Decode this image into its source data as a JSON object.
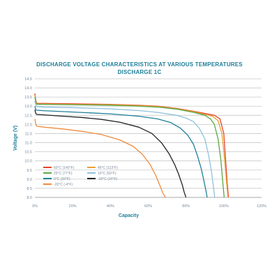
{
  "chart_data": {
    "type": "line",
    "title": "DISCHARGE VOLTAGE CHARACTERISTICS AT VARIOUS TEMPERATURES",
    "subtitle": "DISCHARGE 1C",
    "xlabel": "Capacity",
    "ylabel": "Voltage (V)",
    "xlim": [
      0,
      120
    ],
    "ylim": [
      8.0,
      14.5
    ],
    "x_ticks": [
      "0%",
      "20%",
      "40%",
      "60%",
      "80%",
      "100%",
      "120%"
    ],
    "y_ticks": [
      "8.0",
      "8.5",
      "9.0",
      "9.5",
      "10.0",
      "10.5",
      "11.0",
      "11.5",
      "12.0",
      "12.5",
      "13.0",
      "13.5",
      "14.0",
      "14.5"
    ],
    "grid": true,
    "legend_position": "lower-left",
    "series": [
      {
        "name": "60°C (140°F)",
        "color": "#e8442a",
        "x": [
          0,
          0.5,
          1,
          5,
          20,
          40,
          55,
          65,
          75,
          84,
          90,
          95,
          98,
          100,
          101,
          101.8,
          102.5
        ],
        "y": [
          13.7,
          13.3,
          13.15,
          13.15,
          13.13,
          13.1,
          13.05,
          13.0,
          12.88,
          12.72,
          12.6,
          12.5,
          12.3,
          11.5,
          10.0,
          8.8,
          8.0
        ]
      },
      {
        "name": "45°C (113°F)",
        "color": "#e8a233",
        "x": [
          0,
          0.5,
          1,
          5,
          20,
          40,
          55,
          65,
          75,
          84,
          90,
          94,
          97,
          99,
          100.5,
          101.5,
          102.2
        ],
        "y": [
          13.6,
          13.25,
          13.12,
          13.12,
          13.1,
          13.08,
          13.03,
          12.98,
          12.86,
          12.7,
          12.55,
          12.45,
          12.2,
          11.5,
          10.0,
          8.8,
          8.0
        ]
      },
      {
        "name": "25°C (77°F)",
        "color": "#5aa845",
        "x": [
          0,
          0.5,
          1,
          5,
          20,
          40,
          55,
          65,
          75,
          84,
          90,
          93,
          95,
          97,
          98.5,
          99.5,
          100.2
        ],
        "y": [
          13.5,
          13.2,
          13.1,
          13.1,
          13.08,
          13.05,
          13.0,
          12.95,
          12.84,
          12.66,
          12.5,
          12.3,
          12.0,
          11.2,
          10.0,
          8.8,
          8.0
        ]
      },
      {
        "name": "10°C (50°F)",
        "color": "#8ec1dd",
        "x": [
          0,
          0.5,
          1,
          5,
          20,
          40,
          55,
          65,
          75,
          80,
          84,
          87,
          90,
          92,
          93.5,
          94.5,
          95.2
        ],
        "y": [
          13.3,
          13.05,
          12.98,
          12.95,
          12.92,
          12.85,
          12.76,
          12.66,
          12.5,
          12.35,
          12.15,
          11.8,
          11.2,
          10.3,
          9.4,
          8.6,
          8.0
        ]
      },
      {
        "name": "0°C (32°F)",
        "color": "#1f7f9a",
        "x": [
          0,
          0.5,
          1,
          5,
          20,
          40,
          55,
          65,
          72,
          77,
          81,
          84,
          86,
          88,
          89.5,
          90.5,
          91.2
        ],
        "y": [
          13.0,
          12.8,
          12.78,
          12.75,
          12.68,
          12.58,
          12.45,
          12.3,
          12.1,
          11.8,
          11.4,
          10.9,
          10.3,
          9.6,
          8.9,
          8.4,
          8.0
        ]
      },
      {
        "name": "-10°C (14°F)",
        "color": "#222222",
        "x": [
          0,
          0.5,
          1,
          5,
          15,
          25,
          35,
          45,
          55,
          62,
          67,
          71,
          74,
          76,
          78,
          79,
          80
        ],
        "y": [
          12.8,
          12.6,
          12.55,
          12.52,
          12.45,
          12.38,
          12.28,
          12.12,
          11.85,
          11.5,
          11.0,
          10.4,
          9.8,
          9.3,
          8.7,
          8.3,
          8.0
        ]
      },
      {
        "name": "-20°C (-4°F)",
        "color": "#f08a3c",
        "x": [
          0,
          0.5,
          1,
          5,
          15,
          25,
          35,
          45,
          52,
          57,
          61,
          64,
          66,
          67.5,
          68.5,
          69.2
        ],
        "y": [
          12.3,
          12.0,
          11.9,
          11.85,
          11.75,
          11.62,
          11.45,
          11.15,
          10.8,
          10.35,
          9.8,
          9.2,
          8.7,
          8.3,
          8.1,
          8.0
        ]
      }
    ]
  }
}
